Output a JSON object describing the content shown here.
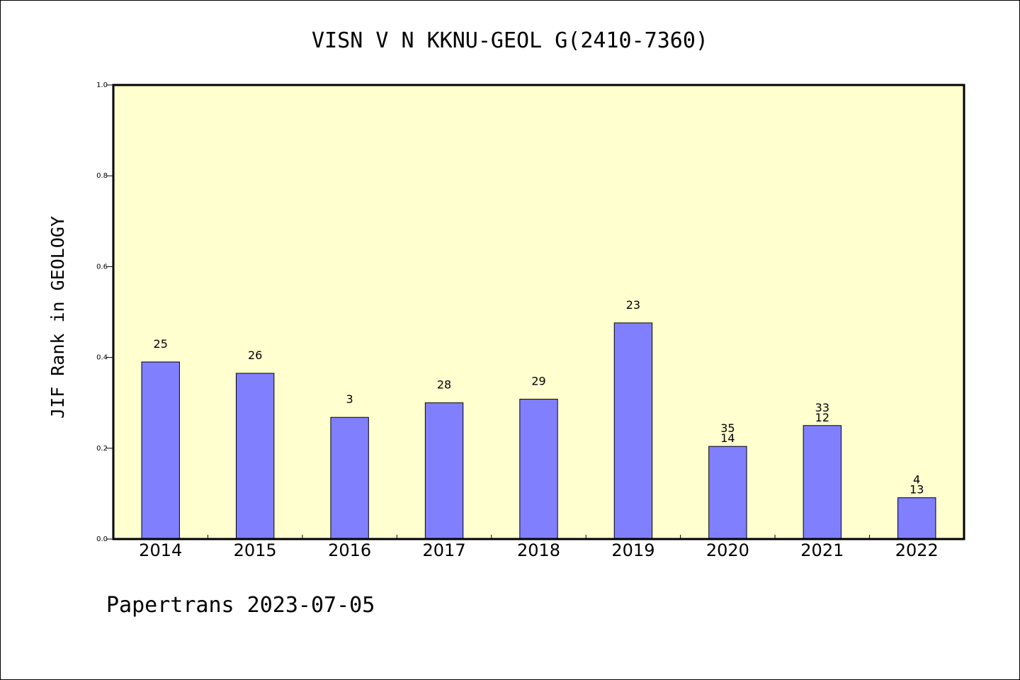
{
  "chart_data": {
    "type": "bar",
    "title": "VISN V N KKNU-GEOL G(2410-7360)",
    "xlabel": "",
    "ylabel": "JIF Rank in GEOLOGY",
    "ylim": [
      0,
      1.0
    ],
    "yticks": [
      "0.0",
      "0.2",
      "0.4",
      "0.6",
      "0.8",
      "1.0"
    ],
    "categories": [
      "2014",
      "2015",
      "2016",
      "2017",
      "2018",
      "2019",
      "2020",
      "2021",
      "2022"
    ],
    "values": [
      0.39,
      0.365,
      0.268,
      0.3,
      0.308,
      0.476,
      0.204,
      0.25,
      0.091
    ],
    "labels": [
      [
        "25"
      ],
      [
        "26"
      ],
      [
        "3"
      ],
      [
        "28"
      ],
      [
        "29"
      ],
      [
        "23"
      ],
      [
        "35",
        "14"
      ],
      [
        "33",
        "12"
      ],
      [
        "4",
        "13"
      ]
    ],
    "colors": {
      "bar": "#8080ff",
      "plot_bg": "#ffffd0",
      "page_bg": "#ffffff"
    },
    "grid": false,
    "legend": "none"
  },
  "footer": {
    "text": "Papertrans 2023-07-05"
  }
}
